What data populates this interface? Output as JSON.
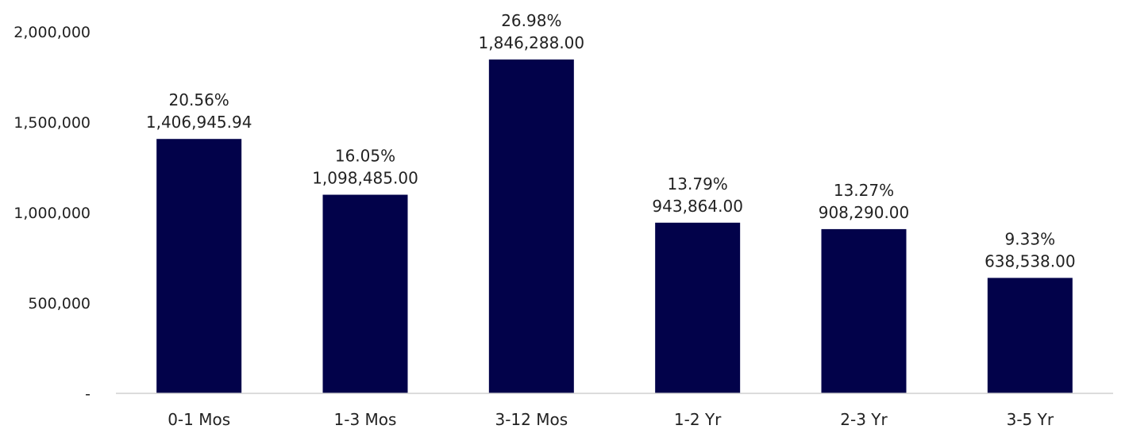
{
  "chart_data": {
    "type": "bar",
    "categories": [
      "0-1 Mos",
      "1-3 Mos",
      "3-12 Mos",
      "1-2 Yr",
      "2-3 Yr",
      "3-5 Yr"
    ],
    "values": [
      1406945.94,
      1098485.0,
      1846288.0,
      943864.0,
      908290.0,
      638538.0
    ],
    "percent_labels": [
      "20.56%",
      "16.05%",
      "26.98%",
      "13.79%",
      "13.27%",
      "9.33%"
    ],
    "value_labels": [
      "1,406,945.94",
      "1,098,485.00",
      "1,846,288.00",
      "943,864.00",
      "908,290.00",
      "638,538.00"
    ],
    "y_ticks": [
      {
        "value": 0,
        "label": "-"
      },
      {
        "value": 500000,
        "label": "500,000"
      },
      {
        "value": 1000000,
        "label": "1,000,000"
      },
      {
        "value": 1500000,
        "label": "1,500,000"
      },
      {
        "value": 2000000,
        "label": "2,000,000"
      }
    ],
    "ylim": [
      0,
      2000000
    ],
    "title": "",
    "xlabel": "",
    "ylabel": "",
    "grid": false,
    "bar_color": "#02024a",
    "axis_color": "#d0d0d0"
  }
}
